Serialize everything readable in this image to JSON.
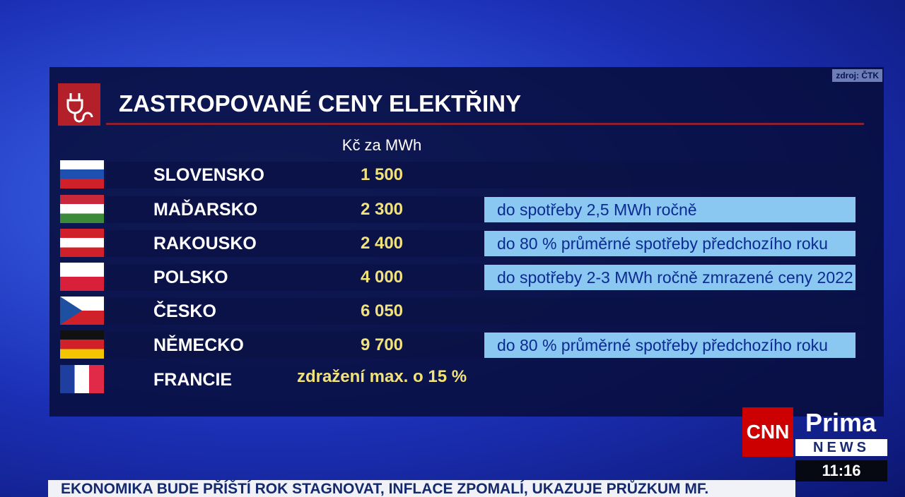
{
  "source": "zdroj: ČTK",
  "title": "ZASTROPOVANÉ CENY ELEKTŘINY",
  "column_header": "Kč za MWh",
  "rows": [
    {
      "country": "SLOVENSKO",
      "value": "1 500"
    },
    {
      "country": "MAĎARSKO",
      "value": "2 300",
      "note": "do spotřeby 2,5 MWh ročně"
    },
    {
      "country": "RAKOUSKO",
      "value": "2 400",
      "note": "do 80 % průměrné spotřeby předchozího roku"
    },
    {
      "country": "POLSKO",
      "value": "4 000",
      "note": "do spotřeby 2-3 MWh ročně zmrazené ceny 2022"
    },
    {
      "country": "ČESKO",
      "value": "6 050"
    },
    {
      "country": "NĚMECKO",
      "value": "9 700",
      "note": "do 80 % průměrné spotřeby předchozího roku"
    },
    {
      "country": "FRANCIE",
      "value": "zdražení max. o 15 %"
    }
  ],
  "logo": {
    "cnn": "CNN",
    "prima": "Prima",
    "news": "NEWS"
  },
  "ticker": "EKONOMIKA BUDE PŘÍŠTÍ ROK STAGNOVAT, INFLACE ZPOMALÍ, UKAZUJE PRŮZKUM MF.",
  "clock": "11:16"
}
